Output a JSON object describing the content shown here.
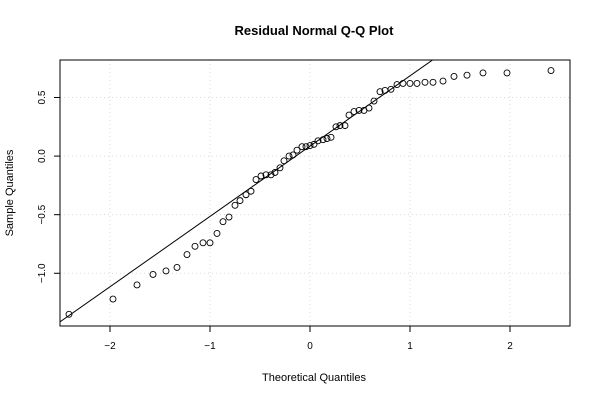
{
  "chart_data": {
    "type": "scatter",
    "title": "Residual Normal Q-Q Plot",
    "xlabel": "Theoretical Quantiles",
    "ylabel": "Sample Quantiles",
    "xlim": [
      -2.5,
      2.6
    ],
    "ylim": [
      -1.45,
      0.82
    ],
    "xticks": [
      -2,
      -1,
      0,
      1,
      2
    ],
    "xtick_labels": [
      "−2",
      "−1",
      "0",
      "1",
      "2"
    ],
    "yticks": [
      -1.0,
      -0.5,
      0.0,
      0.5
    ],
    "ytick_labels": [
      "−1.0",
      "−0.5",
      "0.0",
      "0.5"
    ],
    "grid": true,
    "reference_line": {
      "intercept": 0.085,
      "slope": 0.6
    },
    "points": [
      {
        "x": -2.41,
        "y": -1.35
      },
      {
        "x": -1.97,
        "y": -1.22
      },
      {
        "x": -1.73,
        "y": -1.1
      },
      {
        "x": -1.57,
        "y": -1.01
      },
      {
        "x": -1.44,
        "y": -0.98
      },
      {
        "x": -1.33,
        "y": -0.95
      },
      {
        "x": -1.23,
        "y": -0.84
      },
      {
        "x": -1.15,
        "y": -0.77
      },
      {
        "x": -1.07,
        "y": -0.74
      },
      {
        "x": -1.0,
        "y": -0.74
      },
      {
        "x": -0.93,
        "y": -0.66
      },
      {
        "x": -0.87,
        "y": -0.56
      },
      {
        "x": -0.81,
        "y": -0.52
      },
      {
        "x": -0.75,
        "y": -0.42
      },
      {
        "x": -0.7,
        "y": -0.38
      },
      {
        "x": -0.64,
        "y": -0.33
      },
      {
        "x": -0.59,
        "y": -0.3
      },
      {
        "x": -0.54,
        "y": -0.2
      },
      {
        "x": -0.49,
        "y": -0.17
      },
      {
        "x": -0.44,
        "y": -0.16
      },
      {
        "x": -0.39,
        "y": -0.16
      },
      {
        "x": -0.35,
        "y": -0.14
      },
      {
        "x": -0.3,
        "y": -0.1
      },
      {
        "x": -0.26,
        "y": -0.04
      },
      {
        "x": -0.21,
        "y": 0.0
      },
      {
        "x": -0.17,
        "y": 0.01
      },
      {
        "x": -0.13,
        "y": 0.05
      },
      {
        "x": -0.08,
        "y": 0.08
      },
      {
        "x": -0.04,
        "y": 0.08
      },
      {
        "x": 0.0,
        "y": 0.09
      },
      {
        "x": 0.04,
        "y": 0.1
      },
      {
        "x": 0.08,
        "y": 0.13
      },
      {
        "x": 0.13,
        "y": 0.14
      },
      {
        "x": 0.17,
        "y": 0.15
      },
      {
        "x": 0.21,
        "y": 0.16
      },
      {
        "x": 0.26,
        "y": 0.25
      },
      {
        "x": 0.3,
        "y": 0.26
      },
      {
        "x": 0.35,
        "y": 0.26
      },
      {
        "x": 0.39,
        "y": 0.35
      },
      {
        "x": 0.44,
        "y": 0.38
      },
      {
        "x": 0.49,
        "y": 0.39
      },
      {
        "x": 0.54,
        "y": 0.39
      },
      {
        "x": 0.59,
        "y": 0.41
      },
      {
        "x": 0.64,
        "y": 0.47
      },
      {
        "x": 0.7,
        "y": 0.55
      },
      {
        "x": 0.75,
        "y": 0.56
      },
      {
        "x": 0.81,
        "y": 0.57
      },
      {
        "x": 0.87,
        "y": 0.61
      },
      {
        "x": 0.93,
        "y": 0.62
      },
      {
        "x": 1.0,
        "y": 0.62
      },
      {
        "x": 1.07,
        "y": 0.62
      },
      {
        "x": 1.15,
        "y": 0.63
      },
      {
        "x": 1.23,
        "y": 0.63
      },
      {
        "x": 1.33,
        "y": 0.64
      },
      {
        "x": 1.44,
        "y": 0.68
      },
      {
        "x": 1.57,
        "y": 0.69
      },
      {
        "x": 1.73,
        "y": 0.71
      },
      {
        "x": 1.97,
        "y": 0.71
      },
      {
        "x": 2.41,
        "y": 0.73
      }
    ]
  }
}
